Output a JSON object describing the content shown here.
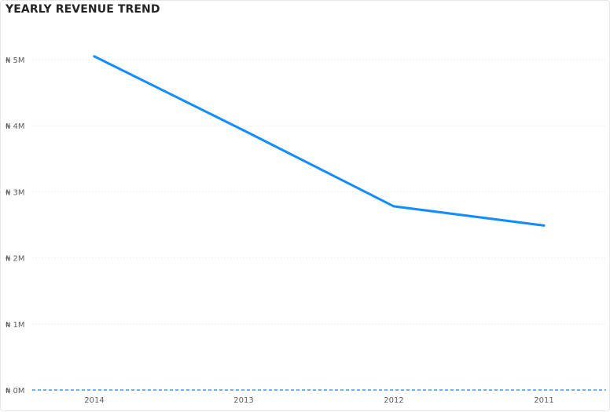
{
  "chart_data": {
    "type": "line",
    "title": "YEARLY REVENUE TREND",
    "xlabel": "",
    "ylabel": "",
    "categories": [
      "2014",
      "2013",
      "2012",
      "2011"
    ],
    "series": [
      {
        "values": [
          5.05,
          3.93,
          2.78,
          2.49
        ]
      }
    ],
    "y_ticks": [
      "₦ 0M",
      "₦ 1M",
      "₦ 2M",
      "₦ 3M",
      "₦ 4M",
      "₦ 5M"
    ],
    "ylim": [
      0,
      5
    ],
    "grid": true,
    "line_color": "#118dff",
    "grid_color": "#e1dfdd",
    "baseline_color": "#6fb0f0"
  }
}
